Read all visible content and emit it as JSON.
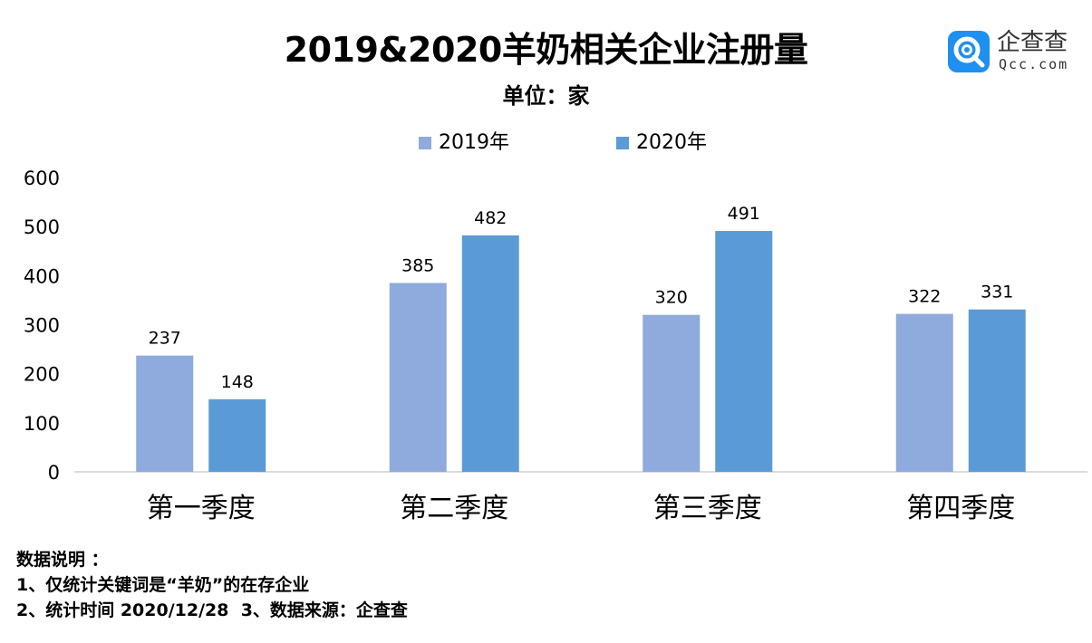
{
  "title": "2019&2020羊奶相关企业注册量",
  "subtitle": "单位：家",
  "logo": {
    "name": "企查查",
    "sub": "Qcc.com"
  },
  "colors": {
    "series_2019": "#8faadc",
    "series_2020": "#5b9bd5",
    "axis": "#d0d0d0"
  },
  "chart_data": {
    "type": "bar",
    "title": "2019&2020羊奶相关企业注册量",
    "subtitle": "单位：家",
    "categories": [
      "第一季度",
      "第二季度",
      "第三季度",
      "第四季度"
    ],
    "series": [
      {
        "name": "2019年",
        "values": [
          237,
          385,
          320,
          322
        ]
      },
      {
        "name": "2020年",
        "values": [
          148,
          482,
          491,
          331
        ]
      }
    ],
    "ylim": [
      0,
      600
    ],
    "yticks": [
      0,
      100,
      200,
      300,
      400,
      500,
      600
    ],
    "xlabel": "",
    "ylabel": "",
    "grid": false,
    "legend": "top-center",
    "data_labels": true
  },
  "notes": {
    "heading": "数据说明 ：",
    "line1": "1、仅统计关键词是“羊奶”的在存企业",
    "line2": "2、统计时间 2020/12/28  3、数据来源：企查查"
  }
}
